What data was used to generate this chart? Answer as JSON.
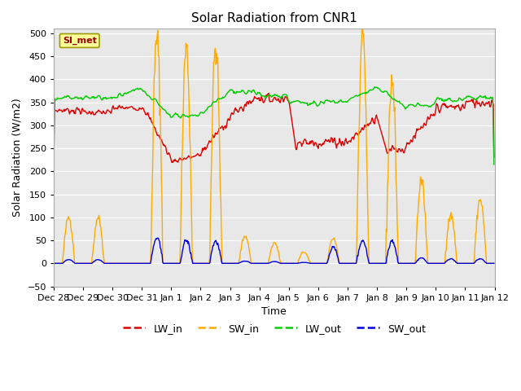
{
  "title": "Solar Radiation from CNR1",
  "xlabel": "Time",
  "ylabel": "Solar Radiation (W/m2)",
  "ylim": [
    -50,
    510
  ],
  "yticks": [
    -50,
    0,
    50,
    100,
    150,
    200,
    250,
    300,
    350,
    400,
    450,
    500
  ],
  "annotation_label": "SI_met",
  "series": {
    "LW_in": {
      "color": "#dd0000",
      "linewidth": 1.0
    },
    "SW_in": {
      "color": "#ffaa00",
      "linewidth": 1.0
    },
    "LW_out": {
      "color": "#00cc00",
      "linewidth": 1.0
    },
    "SW_out": {
      "color": "#0000dd",
      "linewidth": 1.0
    }
  },
  "legend_labels": [
    "LW_in",
    "SW_in",
    "LW_out",
    "SW_out"
  ],
  "legend_colors": [
    "#dd0000",
    "#ffaa00",
    "#00cc00",
    "#0000dd"
  ],
  "fig_bg": "#ffffff",
  "plot_bg": "#e8e8e8",
  "grid_color": "#ffffff",
  "title_fontsize": 11,
  "axis_fontsize": 9,
  "tick_fontsize": 8
}
